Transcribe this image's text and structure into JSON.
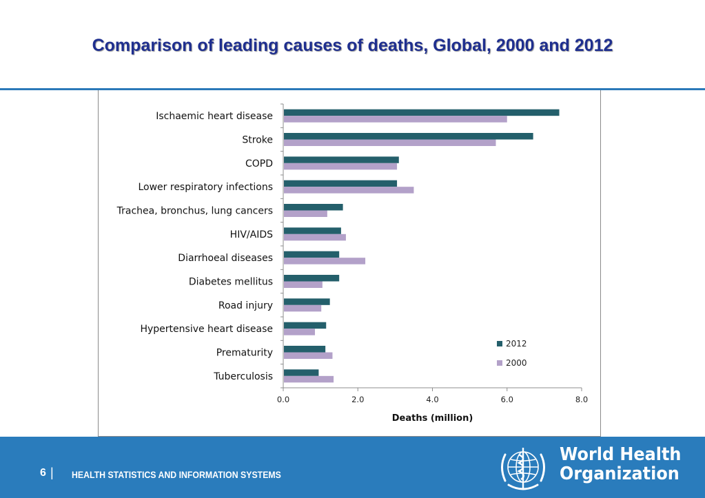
{
  "slide": {
    "title": "Comparison of leading causes of deaths, Global, 2000 and 2012"
  },
  "footer": {
    "page_number": "6",
    "separator": "|",
    "text": "HEALTH STATISTICS AND INFORMATION SYSTEMS",
    "org_line1": "World Health",
    "org_line2": "Organization"
  },
  "colors": {
    "series_2012": "#245f6b",
    "series_2000": "#b3a1c9",
    "title": "#1f2f8f",
    "footer_bg": "#2a7cbc"
  },
  "chart_data": {
    "type": "bar",
    "orientation": "horizontal",
    "categories": [
      "Ischaemic heart disease",
      "Stroke",
      "COPD",
      "Lower respiratory infections",
      "Trachea, bronchus, lung cancers",
      "HIV/AIDS",
      "Diarrhoeal diseases",
      "Diabetes mellitus",
      "Road injury",
      "Hypertensive heart disease",
      "Prematurity",
      "Tuberculosis"
    ],
    "series": [
      {
        "name": "2012",
        "values": [
          7.4,
          6.7,
          3.1,
          3.05,
          1.6,
          1.55,
          1.5,
          1.5,
          1.25,
          1.15,
          1.13,
          0.95
        ]
      },
      {
        "name": "2000",
        "values": [
          6.0,
          5.7,
          3.05,
          3.5,
          1.18,
          1.68,
          2.2,
          1.05,
          1.02,
          0.85,
          1.32,
          1.35
        ]
      }
    ],
    "xlabel": "Deaths (million)",
    "xlim": [
      0,
      8
    ],
    "xticks": [
      "0.0",
      "2.0",
      "4.0",
      "6.0",
      "8.0"
    ],
    "grid": false,
    "legend_position": "bottom-right"
  }
}
